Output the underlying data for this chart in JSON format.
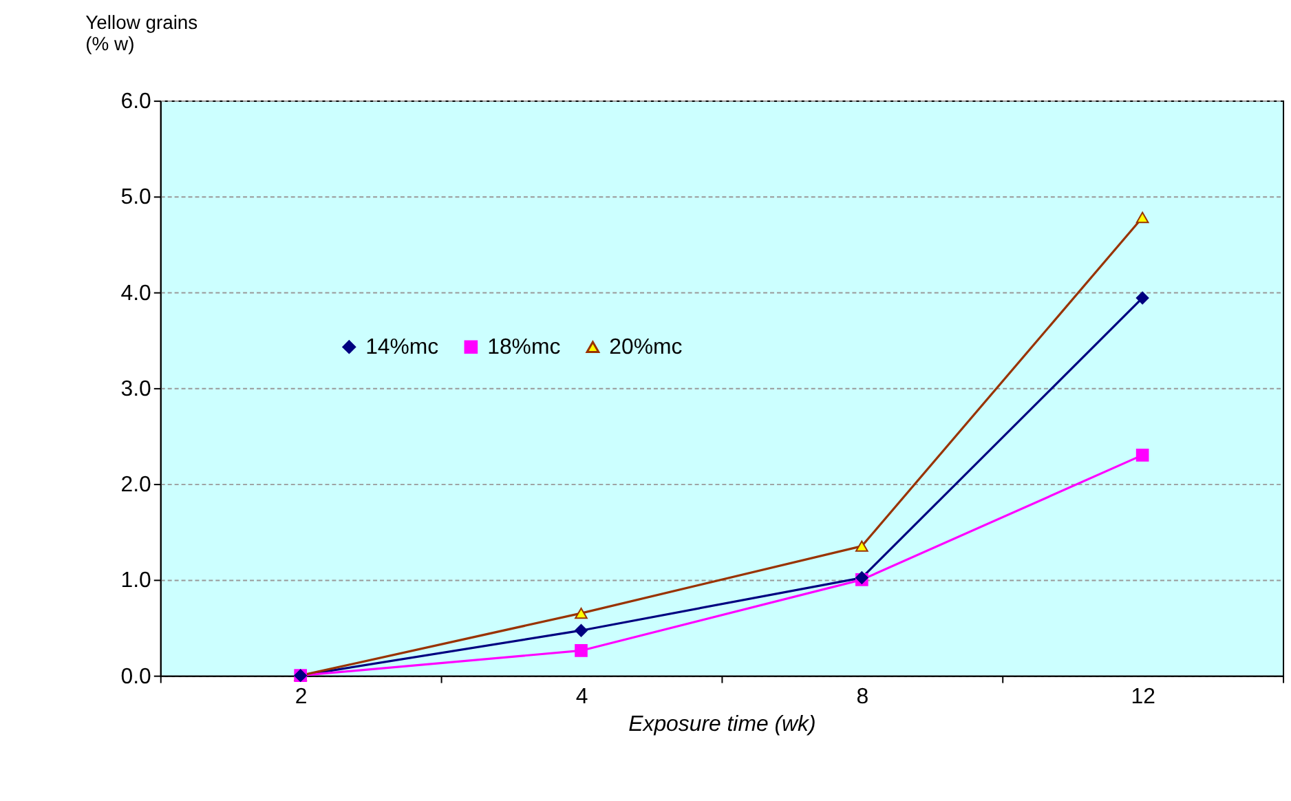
{
  "chart_data": {
    "type": "line",
    "ylabel": "Yellow grains\n(%  w)",
    "xlabel": "Exposure time (wk)",
    "categories": [
      "2",
      "4",
      "8",
      "12"
    ],
    "series": [
      {
        "name": "14%mc",
        "color": "#000080",
        "marker": "diamond",
        "values": [
          0,
          0.47,
          1.02,
          3.94
        ]
      },
      {
        "name": "18%mc",
        "color": "#ff00ff",
        "marker": "square",
        "values": [
          0,
          0.26,
          1.0,
          2.3
        ]
      },
      {
        "name": "20%mc",
        "color": "#993300",
        "marker": "triangle",
        "values": [
          0,
          0.65,
          1.35,
          4.78
        ]
      }
    ],
    "ylim": [
      0,
      6
    ],
    "yticks": [
      {
        "value": 0,
        "label": "0.0"
      },
      {
        "value": 1,
        "label": "1.0"
      },
      {
        "value": 2,
        "label": "2.0"
      },
      {
        "value": 3,
        "label": "3.0"
      },
      {
        "value": 4,
        "label": "4.0"
      },
      {
        "value": 5,
        "label": "5.0"
      },
      {
        "value": 6,
        "label": "6.0"
      }
    ],
    "grid": "y",
    "legend": "left",
    "line_style": "solid"
  }
}
